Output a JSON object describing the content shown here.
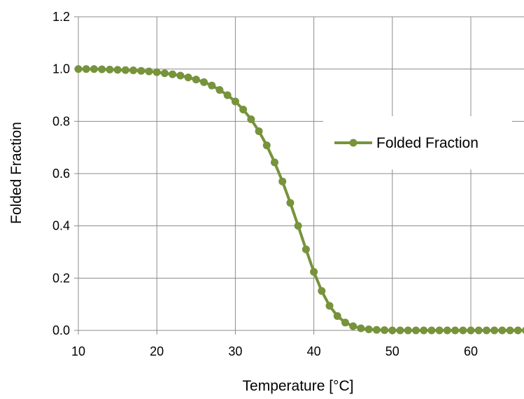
{
  "chart_data": {
    "type": "line",
    "title": "",
    "xlabel": "Temperature [°C]",
    "ylabel": "Folded Fraction",
    "xlim": [
      10,
      68
    ],
    "ylim": [
      0,
      1.2
    ],
    "x_ticks": [
      "10",
      "20",
      "30",
      "40",
      "50",
      "60"
    ],
    "y_ticks": [
      "0.0",
      "0.2",
      "0.4",
      "0.6",
      "0.8",
      "1.0",
      "1.2"
    ],
    "grid": true,
    "legend": {
      "position": "right",
      "entries": [
        "Folded Fraction"
      ]
    },
    "series": [
      {
        "name": "Folded Fraction",
        "color": "#77933C",
        "marker": "circle",
        "x": [
          10,
          11,
          12,
          13,
          14,
          15,
          16,
          17,
          18,
          19,
          20,
          21,
          22,
          23,
          24,
          25,
          26,
          27,
          28,
          29,
          30,
          31,
          32,
          33,
          34,
          35,
          36,
          37,
          38,
          39,
          40,
          41,
          42,
          43,
          44,
          45,
          46,
          47,
          48,
          49,
          50,
          51,
          52,
          53,
          54,
          55,
          56,
          57,
          58,
          59,
          60,
          61,
          62,
          63,
          64,
          65,
          66,
          67
        ],
        "y": [
          1.0,
          1.0,
          1.0,
          0.999,
          0.998,
          0.997,
          0.996,
          0.995,
          0.993,
          0.991,
          0.988,
          0.984,
          0.98,
          0.975,
          0.968,
          0.96,
          0.95,
          0.937,
          0.92,
          0.9,
          0.876,
          0.845,
          0.808,
          0.762,
          0.708,
          0.643,
          0.57,
          0.488,
          0.4,
          0.31,
          0.224,
          0.151,
          0.094,
          0.055,
          0.03,
          0.016,
          0.008,
          0.004,
          0.002,
          0.001,
          0.0,
          0.0,
          0.0,
          0.0,
          0.0,
          0.0,
          0.0,
          0.0,
          0.0,
          0.0,
          0.0,
          0.0,
          0.0,
          0.0,
          0.0,
          0.0,
          0.0,
          0.0
        ]
      }
    ]
  }
}
